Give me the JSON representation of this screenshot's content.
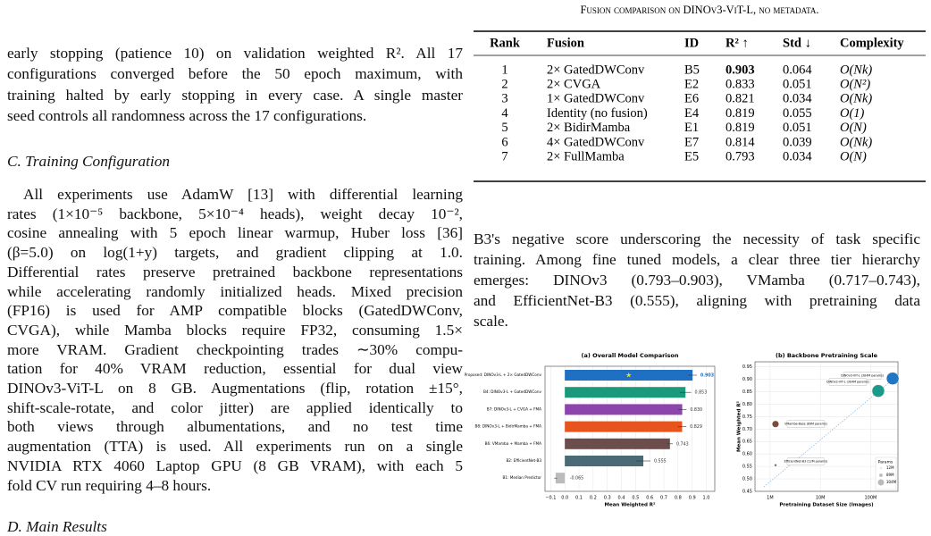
{
  "left": {
    "intro_lines": [
      "early stopping (patience 10) on validation weighted R². All 17",
      "configurations converged before the 50 epoch maximum, with",
      "training halted by early stopping in every case. A single master",
      "seed controls all randomness across the 17 configurations."
    ],
    "section_c": {
      "heading": "C. Training Configuration",
      "lines": [
        "All experiments use AdamW [13] with differential learning",
        "rates (1×10⁻⁵ backbone, 5×10⁻⁴ heads), weight decay 10⁻²,",
        "cosine annealing with 5 epoch linear warmup, Huber loss [36]",
        "(β=5.0) on log(1+y) targets, and gradient clipping at 1.0.",
        "Differential rates preserve pretrained backbone representations",
        "while accelerating randomly initialized heads. Mixed precision",
        "(FP16) is used for AMP compatible blocks (GatedDWConv,",
        "CVGA), while Mamba blocks require FP32, consuming 1.5×",
        "more VRAM. Gradient checkpointing trades ∼30% compu-",
        "tation for 40% VRAM reduction, essential for dual view",
        "DINOv3-ViT-L on 8 GB. Augmentations (flip, rotation ±15°,",
        "shift-scale-rotate, and color jitter) are applied identically to",
        "both views through albumentations, and no test time",
        "augmentation (TTA) is used. All experiments run on a single",
        "NVIDIA RTX 4060 Laptop GPU (8 GB VRAM), with each 5",
        "fold CV run requiring 4–8 hours."
      ]
    },
    "section_d": {
      "heading": "D. Main Results"
    }
  },
  "table": {
    "caption": "Fusion comparison on DINOv3-ViT-L, no metadata.",
    "headers": [
      "Rank",
      "Fusion",
      "ID",
      "R² ↑",
      "Std ↓",
      "Complexity"
    ],
    "rows": [
      [
        "1",
        "2× GatedDWConv",
        "B5",
        "0.903",
        "0.064",
        "O(Nk)"
      ],
      [
        "2",
        "2× CVGA",
        "E2",
        "0.833",
        "0.051",
        "O(N²)"
      ],
      [
        "3",
        "1× GatedDWConv",
        "E6",
        "0.821",
        "0.034",
        "O(Nk)"
      ],
      [
        "4",
        "Identity (no fusion)",
        "E4",
        "0.819",
        "0.055",
        "O(1)"
      ],
      [
        "5",
        "2× BidirMamba",
        "E1",
        "0.819",
        "0.051",
        "O(N)"
      ],
      [
        "6",
        "4× GatedDWConv",
        "E7",
        "0.814",
        "0.039",
        "O(Nk)"
      ],
      [
        "7",
        "2× FullMamba",
        "E5",
        "0.793",
        "0.034",
        "O(N)"
      ]
    ]
  },
  "right_paragraph": {
    "lines": [
      "B3's negative score underscoring the necessity of task specific",
      "training. Among fine tuned models, a clear three tier hierarchy",
      "emerges: DINOv3 (0.793–0.903), VMamba (0.717–0.743),",
      "and EfficientNet-B3 (0.555), aligning with pretraining data",
      "scale."
    ]
  },
  "chart_data": [
    {
      "type": "bar",
      "orientation": "horizontal",
      "title": "(a) Overall Model Comparison",
      "x_label": "Mean Weighted R²",
      "categories": [
        "Proposed: DINOv3-L + 2× GatedDWConv",
        "B4: DINOv3-L + GatedDWConv",
        "B7: DINOv3-L + CVGA + FMA",
        "B8: DINOv3-L + BidirMamba + FMA",
        "B6: VMamba + Mamba + FMA",
        "B2: EfficientNet-B3",
        "B1: Median Predictor"
      ],
      "values": [
        0.903,
        0.853,
        0.83,
        0.829,
        0.743,
        0.555,
        -0.065
      ],
      "value_labels": [
        "0.903",
        "0.853",
        "0.830",
        "0.829",
        "0.743",
        "0.555",
        "-0.065"
      ],
      "errors": [
        0.03,
        0.04,
        0.03,
        0.03,
        0.02,
        0.05,
        0.01
      ],
      "colors": [
        "#1f6fc4",
        "#1a9a7a",
        "#8e44ad",
        "#e8541e",
        "#6d4c4c",
        "#4a6a78",
        "#bbbbbb"
      ],
      "xlim": [
        -0.14,
        1.06
      ],
      "xticks": [
        {
          "value": -0.1,
          "label": "−0.1"
        },
        {
          "value": 0,
          "label": "0.0"
        },
        0.1,
        0.2,
        0.3,
        0.4,
        0.5,
        0.6,
        0.7,
        0.8,
        0.9,
        {
          "value": 1,
          "label": "1.0"
        }
      ],
      "grid": true
    },
    {
      "type": "scatter",
      "title": "(b) Backbone Pretraining Scale",
      "x_label": "Pretraining Dataset Size (Images)",
      "y_label": "Mean Weighted R²",
      "x_log": true,
      "point_labels": [
        "DINOv3-ViT-L (304M params)",
        "DINOv2-ViT-L (304M params)",
        "VMamba-Base (89M params)",
        "EfficientNet-B3 (12M params)"
      ],
      "x": [
        275000000,
        142000000,
        1280000,
        1280000
      ],
      "values": [
        0.903,
        0.853,
        0.72,
        0.555
      ],
      "sizes": [
        304,
        304,
        89,
        12
      ],
      "colors": [
        "#1f77c4",
        "#1a9a8a",
        "#7b4a3a",
        "#5a6a78"
      ],
      "xlim": [
        500000,
        350000000
      ],
      "xticks": [
        {
          "value": 1000000,
          "label": "1M"
        },
        {
          "value": 10000000,
          "label": "10M"
        },
        {
          "value": 100000000,
          "label": "100M"
        }
      ],
      "ylim": [
        0.45,
        0.97
      ],
      "yticks": [
        0.45,
        {
          "value": 0.5,
          "label": "0.50"
        },
        0.55,
        {
          "value": 0.6,
          "label": "0.60"
        },
        0.65,
        {
          "value": 0.7,
          "label": "0.70"
        },
        0.75,
        {
          "value": 0.8,
          "label": "0.80"
        },
        0.85,
        {
          "value": 0.9,
          "label": "0.90"
        },
        0.95
      ],
      "grid": true,
      "size_legend": {
        "title": "Params",
        "labels": [
          "12M",
          "89M",
          "304M"
        ],
        "values": [
          12,
          89,
          304
        ]
      }
    }
  ]
}
